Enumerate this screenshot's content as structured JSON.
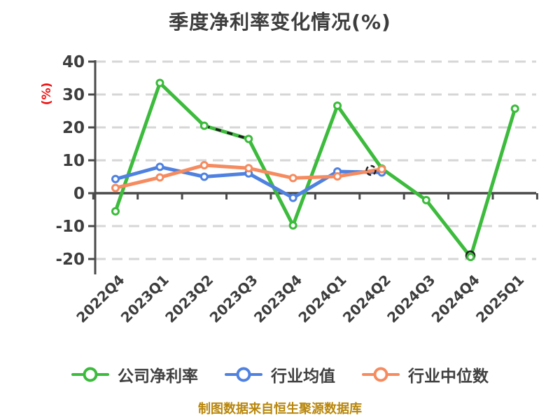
{
  "title": "季度净利率变化情况(%)",
  "footer": "制图数据来自恒生聚源数据库",
  "y_axis": {
    "unit": "(%)",
    "unit_color": "#ee1111"
  },
  "colors": {
    "background": "#ffffff",
    "grid": "#d6d6d6",
    "axis": "#4a4a4a",
    "text": "#3d3d3d",
    "footer": "#b8860b",
    "marker_fill": "#ffffff",
    "dashed_overlay": "#1e1e1e"
  },
  "chart_data": {
    "type": "line",
    "title": "季度净利率变化情况(%)",
    "categories": [
      "2022Q4",
      "2023Q1",
      "2023Q2",
      "2023Q3",
      "2023Q4",
      "2024Q1",
      "2024Q2",
      "2024Q3",
      "2024Q4",
      "2025Q1"
    ],
    "series": [
      {
        "name": "公司净利率",
        "color": "#3cbb3c",
        "values": [
          -5.5,
          33.5,
          20.5,
          16.5,
          -9.8,
          26.6,
          7.5,
          -2.1,
          -19.4,
          25.7
        ]
      },
      {
        "name": "行业均值",
        "color": "#4f81e0",
        "values": [
          4.3,
          8.0,
          5.0,
          6.0,
          -1.4,
          6.6,
          6.3,
          null,
          null,
          null
        ]
      },
      {
        "name": "行业中位数",
        "color": "#f58b5f",
        "values": [
          1.6,
          4.8,
          8.5,
          7.6,
          4.6,
          5.1,
          7.3,
          null,
          null,
          null
        ]
      }
    ],
    "ylim": [
      -20,
      40
    ],
    "y_ticks": [
      40,
      30,
      20,
      10,
      0,
      -10,
      -20
    ],
    "ylabel": "(%)",
    "xlabel": "",
    "grid": "horizontal-dashed",
    "legend_position": "bottom",
    "marker": "circle-white-fill",
    "x_tick_label_rotation": 45,
    "dashed_overlay_segment": {
      "series": "公司净利率",
      "from": "2023Q2",
      "to": "2023Q3"
    }
  }
}
